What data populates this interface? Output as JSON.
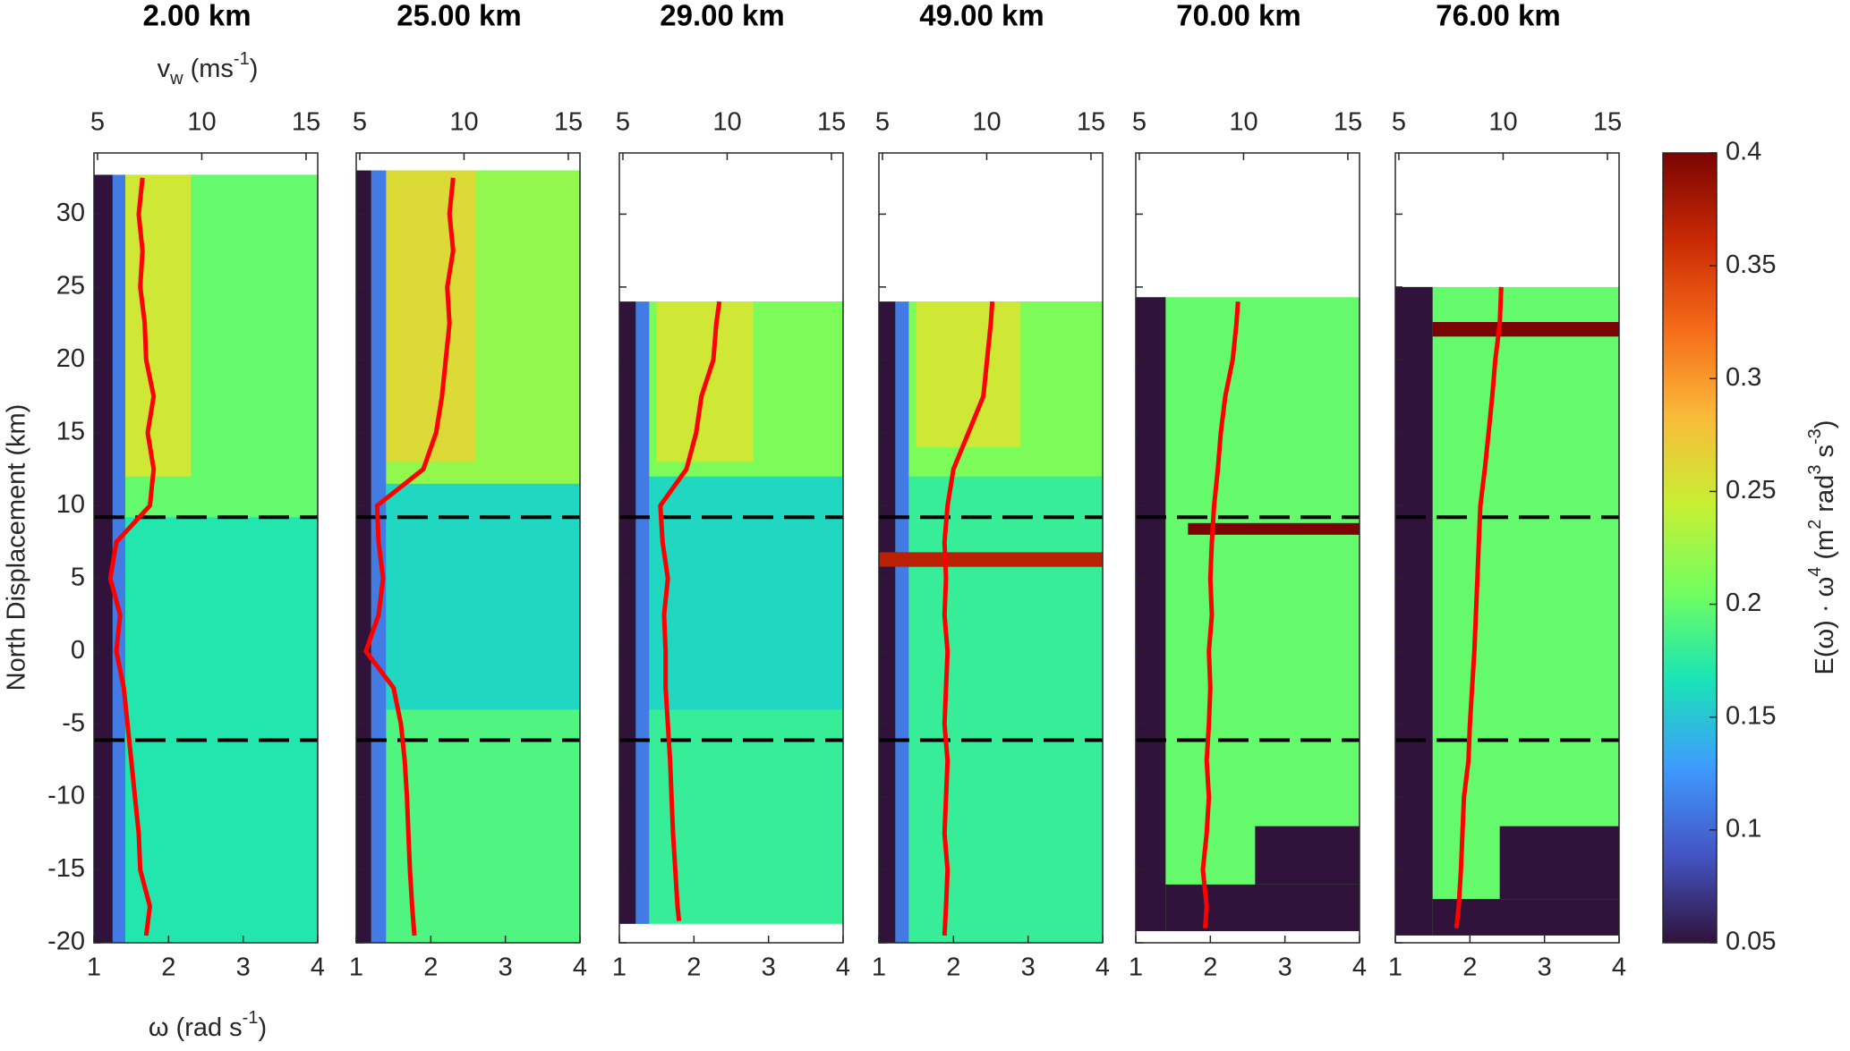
{
  "chart_data": [
    {
      "type": "heatmap",
      "title": "2.00 km",
      "xlim": [
        1,
        4
      ],
      "xticks": [
        1,
        2,
        3,
        4
      ],
      "x2lim": [
        4.83,
        15.56
      ],
      "x2ticks": [
        5,
        10,
        15
      ],
      "zones": [
        {
          "x": [
            1,
            4
          ],
          "y": [
            -20,
            32.7
          ],
          "level": 0.17
        },
        {
          "x": [
            1.4,
            4
          ],
          "y": [
            9.2,
            32.7
          ],
          "level": 0.2
        },
        {
          "x": [
            1.4,
            2.3
          ],
          "y": [
            12,
            32.7
          ],
          "level": 0.25
        },
        {
          "x": [
            1.25,
            1.42
          ],
          "y": [
            -20,
            32.7
          ],
          "level": 0.11
        },
        {
          "x": [
            1,
            1.25
          ],
          "y": [
            -20,
            32.7
          ],
          "level": 0.05
        }
      ],
      "line": {
        "color": "#ff0000",
        "y": [
          -19.5,
          -17.5,
          -15,
          -12.5,
          -10,
          -7.5,
          -5,
          -2.5,
          0,
          2.5,
          5,
          7.5,
          10,
          12.5,
          15,
          17.5,
          20,
          22.5,
          25,
          27.5,
          30,
          32.5
        ],
        "x": [
          1.7,
          1.75,
          1.62,
          1.6,
          1.55,
          1.5,
          1.45,
          1.4,
          1.3,
          1.35,
          1.22,
          1.3,
          1.75,
          1.8,
          1.72,
          1.8,
          1.7,
          1.68,
          1.62,
          1.65,
          1.6,
          1.65
        ]
      }
    },
    {
      "type": "heatmap",
      "title": "25.00 km",
      "xlim": [
        1,
        4
      ],
      "xticks": [
        1,
        2,
        3,
        4
      ],
      "x2lim": [
        4.83,
        15.56
      ],
      "x2ticks": [
        5,
        10,
        15
      ],
      "zones": [
        {
          "x": [
            1,
            4
          ],
          "y": [
            -20,
            33
          ],
          "level": 0.19
        },
        {
          "x": [
            1.4,
            4
          ],
          "y": [
            -4,
            11.5
          ],
          "level": 0.16
        },
        {
          "x": [
            1.4,
            4
          ],
          "y": [
            11.5,
            33
          ],
          "level": 0.22
        },
        {
          "x": [
            1.4,
            2.6
          ],
          "y": [
            13,
            33
          ],
          "level": 0.26
        },
        {
          "x": [
            1.2,
            1.4
          ],
          "y": [
            -20,
            33
          ],
          "level": 0.11
        },
        {
          "x": [
            1,
            1.2
          ],
          "y": [
            -20,
            33
          ],
          "level": 0.05
        }
      ],
      "line": {
        "color": "#ff0000",
        "y": [
          -19.5,
          -17.5,
          -15,
          -12.5,
          -10,
          -7.5,
          -5,
          -2.5,
          0,
          2.5,
          5,
          7.5,
          10,
          12.5,
          15,
          17.5,
          20,
          22.5,
          25,
          27.5,
          30,
          32.5
        ],
        "x": [
          1.78,
          1.75,
          1.72,
          1.7,
          1.68,
          1.65,
          1.6,
          1.5,
          1.13,
          1.3,
          1.36,
          1.3,
          1.28,
          1.9,
          2.07,
          2.15,
          2.2,
          2.25,
          2.22,
          2.3,
          2.25,
          2.3
        ]
      }
    },
    {
      "type": "heatmap",
      "title": "29.00 km",
      "xlim": [
        1,
        4
      ],
      "xticks": [
        1,
        2,
        3,
        4
      ],
      "x2lim": [
        4.83,
        15.56
      ],
      "x2ticks": [
        5,
        10,
        15
      ],
      "zones": [
        {
          "x": [
            1,
            4
          ],
          "y": [
            -18.7,
            24
          ],
          "level": 0.18
        },
        {
          "x": [
            1.4,
            4
          ],
          "y": [
            -4,
            12
          ],
          "level": 0.16
        },
        {
          "x": [
            1.4,
            4
          ],
          "y": [
            12,
            24
          ],
          "level": 0.21
        },
        {
          "x": [
            1.5,
            2.8
          ],
          "y": [
            13,
            24
          ],
          "level": 0.25
        },
        {
          "x": [
            1.22,
            1.4
          ],
          "y": [
            -18.7,
            24
          ],
          "level": 0.11
        },
        {
          "x": [
            1,
            1.22
          ],
          "y": [
            -18.7,
            24
          ],
          "level": 0.05
        }
      ],
      "line": {
        "color": "#ff0000",
        "y": [
          -18.5,
          -17.5,
          -15,
          -12.5,
          -10,
          -7.5,
          -5,
          -2.5,
          0,
          2.5,
          5,
          7.5,
          10,
          12.5,
          15,
          17.5,
          20,
          22.5,
          24
        ],
        "x": [
          1.8,
          1.78,
          1.75,
          1.72,
          1.7,
          1.68,
          1.65,
          1.62,
          1.62,
          1.6,
          1.65,
          1.58,
          1.55,
          1.9,
          2.03,
          2.1,
          2.26,
          2.3,
          2.34
        ]
      }
    },
    {
      "type": "heatmap",
      "title": "49.00 km",
      "xlim": [
        1,
        4
      ],
      "xticks": [
        1,
        2,
        3,
        4
      ],
      "x2lim": [
        4.83,
        15.56
      ],
      "x2ticks": [
        5,
        10,
        15
      ],
      "zones": [
        {
          "x": [
            1,
            4
          ],
          "y": [
            -20,
            24
          ],
          "level": 0.18
        },
        {
          "x": [
            1.4,
            4
          ],
          "y": [
            12,
            24
          ],
          "level": 0.21
        },
        {
          "x": [
            1.5,
            2.9
          ],
          "y": [
            14,
            24
          ],
          "level": 0.25
        },
        {
          "x": [
            1.22,
            1.4
          ],
          "y": [
            -20,
            24
          ],
          "level": 0.11
        },
        {
          "x": [
            1,
            1.22
          ],
          "y": [
            -20,
            24
          ],
          "level": 0.05
        },
        {
          "x": [
            1,
            4
          ],
          "y": [
            5.8,
            6.8
          ],
          "level": 0.37
        }
      ],
      "line": {
        "color": "#ff0000",
        "y": [
          -19.5,
          -17.5,
          -15,
          -12.5,
          -10,
          -7.5,
          -5,
          -2.5,
          0,
          2.5,
          5,
          7.5,
          10,
          12.5,
          15,
          17.5,
          20,
          22.5,
          24
        ],
        "x": [
          1.88,
          1.9,
          1.92,
          1.88,
          1.9,
          1.92,
          1.88,
          1.9,
          1.92,
          1.88,
          1.9,
          1.88,
          1.92,
          2.0,
          2.2,
          2.4,
          2.45,
          2.5,
          2.52
        ]
      }
    },
    {
      "type": "heatmap",
      "title": "70.00 km",
      "xlim": [
        1,
        4
      ],
      "xticks": [
        1,
        2,
        3,
        4
      ],
      "x2lim": [
        4.83,
        15.56
      ],
      "x2ticks": [
        5,
        10,
        15
      ],
      "zones": [
        {
          "x": [
            1,
            4
          ],
          "y": [
            -19.2,
            24.3
          ],
          "level": 0.2
        },
        {
          "x": [
            1,
            1.4
          ],
          "y": [
            -19.2,
            24.3
          ],
          "level": 0.05
        },
        {
          "x": [
            1.4,
            4
          ],
          "y": [
            -19.2,
            -16
          ],
          "level": 0.05
        },
        {
          "x": [
            2.6,
            4
          ],
          "y": [
            -16,
            -12
          ],
          "level": 0.05
        },
        {
          "x": [
            1.7,
            4
          ],
          "y": [
            8,
            8.8
          ],
          "level": 0.4
        }
      ],
      "line": {
        "color": "#ff0000",
        "y": [
          -19,
          -17.5,
          -15,
          -12.5,
          -10,
          -7.5,
          -5,
          -2.5,
          0,
          2.5,
          5,
          7.5,
          10,
          12.5,
          15,
          17.5,
          20,
          22.5,
          24
        ],
        "x": [
          1.93,
          1.95,
          1.9,
          1.95,
          1.98,
          1.95,
          1.98,
          2.0,
          1.98,
          2.02,
          2.0,
          2.02,
          2.05,
          2.1,
          2.14,
          2.2,
          2.3,
          2.35,
          2.37
        ]
      }
    },
    {
      "type": "heatmap",
      "title": "76.00 km",
      "xlim": [
        1,
        4
      ],
      "xticks": [
        1,
        2,
        3,
        4
      ],
      "x2lim": [
        4.83,
        15.56
      ],
      "x2ticks": [
        5,
        10,
        15
      ],
      "zones": [
        {
          "x": [
            1,
            4
          ],
          "y": [
            -19.5,
            25
          ],
          "level": 0.2
        },
        {
          "x": [
            1,
            1.5
          ],
          "y": [
            -19.5,
            25
          ],
          "level": 0.05
        },
        {
          "x": [
            1.5,
            4
          ],
          "y": [
            -19.5,
            -17
          ],
          "level": 0.05
        },
        {
          "x": [
            2.4,
            4
          ],
          "y": [
            -17,
            -12
          ],
          "level": 0.05
        },
        {
          "x": [
            1.5,
            4
          ],
          "y": [
            21.6,
            22.6
          ],
          "level": 0.4
        }
      ],
      "line": {
        "color": "#ff0000",
        "y": [
          -19,
          -17.5,
          -15,
          -12.5,
          -10,
          -7.5,
          -5,
          -2.5,
          0,
          2.5,
          5,
          7.5,
          10,
          12.5,
          15,
          17.5,
          20,
          22.5,
          25
        ],
        "x": [
          1.82,
          1.85,
          1.88,
          1.9,
          1.92,
          1.98,
          2.0,
          2.03,
          2.06,
          2.08,
          2.1,
          2.12,
          2.14,
          2.2,
          2.25,
          2.3,
          2.34,
          2.4,
          2.42
        ]
      }
    }
  ],
  "shared": {
    "ylim": [
      -20,
      34.2
    ],
    "yticks": [
      -20,
      -15,
      -10,
      -5,
      0,
      5,
      10,
      15,
      20,
      25,
      30
    ],
    "ylabel": "North Displacement (km)",
    "xlabel": [
      {
        "text": "ω (rad s"
      },
      {
        "text": "-1",
        "shift": "sup"
      },
      {
        "text": ")"
      }
    ],
    "x2label": [
      {
        "text": "v"
      },
      {
        "text": "w",
        "shift": "sub"
      },
      {
        "text": " (ms"
      },
      {
        "text": "-1",
        "shift": "sup"
      },
      {
        "text": ")"
      }
    ],
    "hlines": [
      9.2,
      -6.1
    ],
    "colorbar": {
      "clim": [
        0.05,
        0.4
      ],
      "ticks": [
        0.05,
        0.1,
        0.15,
        0.2,
        0.25,
        0.3,
        0.35,
        0.4
      ],
      "colors": [
        "#30123b",
        "#4454c4",
        "#3e9bfe",
        "#1ae4b6",
        "#72fe5e",
        "#c8ef34",
        "#faba39",
        "#f66b19",
        "#ca2a04",
        "#7a0403"
      ],
      "label": [
        {
          "text": "E(ω) · ω"
        },
        {
          "text": "4",
          "shift": "sup"
        },
        {
          "text": " (m"
        },
        {
          "text": "2",
          "shift": "sup"
        },
        {
          "text": " rad"
        },
        {
          "text": "3",
          "shift": "sup"
        },
        {
          "text": " s"
        },
        {
          "text": "-3",
          "shift": "sup"
        },
        {
          "text": ")"
        }
      ]
    }
  }
}
